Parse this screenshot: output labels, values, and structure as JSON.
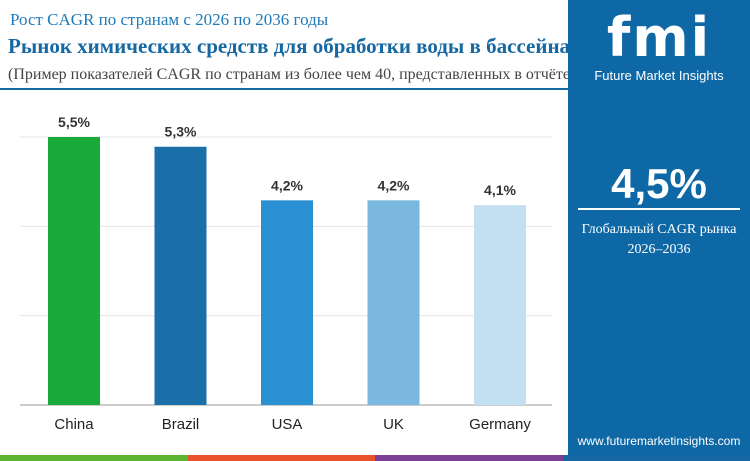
{
  "header": {
    "subtitle": "Рост CAGR по странам с 2026 по 2036 годы",
    "title": "Рынок химических средств для обработки воды в бассейнах и спа",
    "note": "(Пример показателей CAGR по странам из более чем 40, представленных в отчёте)"
  },
  "sidebar": {
    "logo": "fmi",
    "brand": "Future Market Insights",
    "global_cagr": "4,5%",
    "global_label": "Глобальный CAGR рынка",
    "period": "2026–2036",
    "url": "www.futuremarketinsights.com"
  },
  "chart_data": {
    "type": "bar",
    "categories": [
      "China",
      "Brazil",
      "USA",
      "UK",
      "Germany"
    ],
    "values": [
      5.5,
      5.3,
      4.2,
      4.2,
      4.1
    ],
    "labels": [
      "5,5%",
      "5,3%",
      "4,2%",
      "4,2%",
      "4,1%"
    ],
    "colors": [
      "#1aaa3a",
      "#1a6fa8",
      "#2b8fd4",
      "#7ab8e0",
      "#c2e0f2"
    ],
    "ylim": [
      0,
      5.5
    ],
    "grid": true
  },
  "stripe_colors": [
    "#5cb531",
    "#e8532b",
    "#7b3f98",
    "#1668a3"
  ]
}
